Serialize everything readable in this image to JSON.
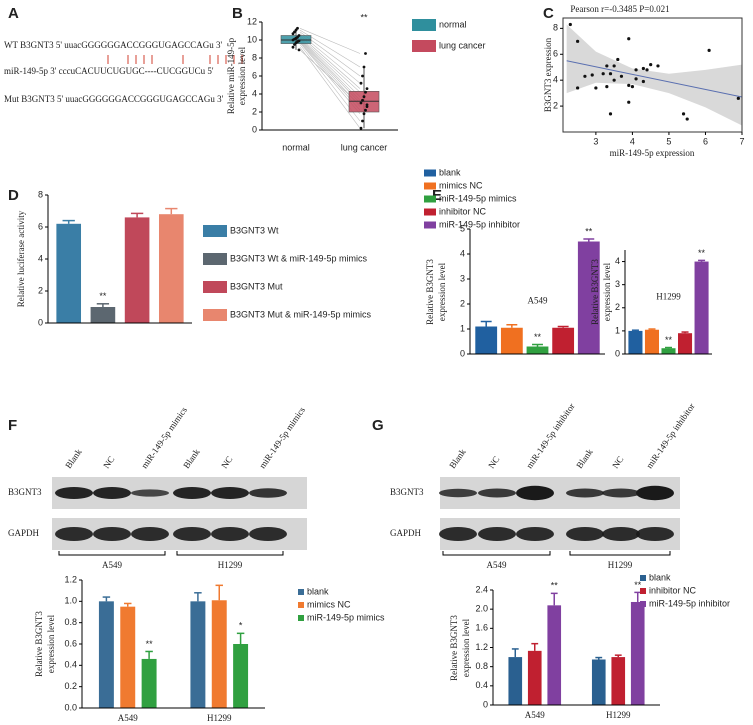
{
  "panel_labels": [
    "A",
    "B",
    "C",
    "D",
    "E",
    "F",
    "G"
  ],
  "sequences": [
    "WT B3GNT3 5' uuacGGGGGGACCGGGUGAGCCAGu 3'",
    "miR-149-5p 3' cccuCACUUCUGUGC----CUCGGUCu 5'",
    "Mut B3GNT3 5' uuacGGGGGGACCGGGUGAGCCAGu 3'"
  ],
  "blots": [
    {
      "lanes": [
        "Blank",
        "NC",
        "miR-149-5p mimics",
        "Blank",
        "NC",
        "miR-149-5p mimics"
      ],
      "rows": [
        "B3GNT3",
        "GAPDH"
      ],
      "groups": [
        "A549",
        "H1299"
      ]
    },
    {
      "lanes": [
        "Blank",
        "NC",
        "miR-149-5p inhibitor",
        "Blank",
        "NC",
        "miR-149-5p inhibitor"
      ],
      "rows": [
        "B3GNT3",
        "GAPDH"
      ],
      "groups": [
        "A549",
        "H1299"
      ]
    }
  ],
  "chart_data": [
    {
      "type": "box",
      "ylabel": [
        "Relative miR-149-5p",
        "expression level"
      ],
      "annotation": "**",
      "categories": [
        "normal",
        "lung cancer"
      ],
      "ylim": [
        0,
        12
      ],
      "yticks": [
        0,
        2,
        4,
        6,
        8,
        10,
        12
      ],
      "series": [
        {
          "name": "normal",
          "color": "#2f8f9d",
          "box": {
            "min": 8.9,
            "q1": 9.6,
            "median": 10.0,
            "q3": 10.5,
            "max": 11.3
          },
          "values": [
            9.2,
            9.5,
            9.7,
            9.8,
            9.9,
            10.0,
            10.1,
            10.2,
            10.3,
            10.5,
            10.7,
            10.9,
            11.1,
            11.3,
            8.9
          ]
        },
        {
          "name": "lung cancer",
          "color": "#c44a5e",
          "box": {
            "min": 0.2,
            "q1": 2.0,
            "median": 3.2,
            "q3": 4.3,
            "max": 7.0
          },
          "values": [
            0.2,
            1.0,
            1.8,
            2.2,
            2.6,
            3.0,
            3.3,
            3.7,
            4.2,
            4.6,
            5.2,
            6.0,
            7.0,
            8.5,
            2.8
          ]
        }
      ]
    },
    {
      "type": "scatter",
      "title": "Pearson r=-0.3485 P=0.021",
      "xlabel": "miR-149-5p expression",
      "ylabel": "B3GNT3 expression",
      "xlim": [
        2.1,
        7.0
      ],
      "ylim": [
        0,
        8.8
      ],
      "xticks": [
        3,
        4,
        5,
        6,
        7
      ],
      "yticks": [
        2,
        4,
        6,
        8
      ],
      "x": [
        2.3,
        2.5,
        2.5,
        2.7,
        2.9,
        3.2,
        3.0,
        3.3,
        3.4,
        3.3,
        3.5,
        3.6,
        3.4,
        3.5,
        3.7,
        3.9,
        3.9,
        3.9,
        4.1,
        4.3,
        4.4,
        4.5,
        4.3,
        4.0,
        4.1,
        4.7,
        5.4,
        5.5,
        6.1,
        6.9
      ],
      "y": [
        8.3,
        7.0,
        3.4,
        4.3,
        4.4,
        4.5,
        3.4,
        3.5,
        4.5,
        5.1,
        5.1,
        5.6,
        1.4,
        4.0,
        4.3,
        3.6,
        7.2,
        2.3,
        4.8,
        4.9,
        4.8,
        5.2,
        3.9,
        3.5,
        4.1,
        5.1,
        1.4,
        1.0,
        6.3,
        2.6
      ],
      "color": "#111111",
      "fit": {
        "x": [
          2.2,
          7.0
        ],
        "y": [
          5.5,
          2.7
        ],
        "color": "#5a6fb0"
      },
      "ci": {
        "x": [
          2.2,
          3.0,
          4.0,
          5.0,
          6.0,
          7.0
        ],
        "upper": [
          8.3,
          6.2,
          4.9,
          4.5,
          4.8,
          5.2
        ],
        "lower": [
          3.0,
          3.8,
          3.7,
          3.0,
          1.9,
          0.5
        ],
        "color": "#d9d9d9"
      }
    },
    {
      "type": "bar",
      "ylabel": "Relative luciferase activity",
      "categories": [
        null
      ],
      "ylim": [
        0,
        8
      ],
      "yticks": [
        0,
        2,
        4,
        6,
        8
      ],
      "series": [
        {
          "name": "B3GNT3 Wt",
          "color": "#3a7ea6",
          "values": [
            6.2
          ],
          "errors": [
            0.2
          ]
        },
        {
          "name": "B3GNT3 Wt & miR-149-5p mimics",
          "color": "#5c6770",
          "values": [
            1.0
          ],
          "errors": [
            0.2
          ],
          "significance": [
            "**"
          ]
        },
        {
          "name": "B3GNT3 Mut",
          "color": "#c0485a",
          "values": [
            6.6
          ],
          "errors": [
            0.25
          ]
        },
        {
          "name": "B3GNT3 Mut & miR-149-5p mimics",
          "color": "#e8866e",
          "values": [
            6.8
          ],
          "errors": [
            0.35
          ]
        }
      ]
    },
    {
      "type": "bar",
      "ylabel": [
        "Relative B3GNT3",
        "expression level"
      ],
      "categories": [
        "A549",
        "H1299"
      ],
      "subplots": [
        {
          "ylim": [
            0,
            5
          ],
          "yticks": [
            0,
            1,
            2,
            3,
            4,
            5
          ]
        },
        {
          "ylim": [
            0,
            4.5
          ],
          "yticks": [
            0,
            1,
            2,
            3,
            4
          ]
        }
      ],
      "series": [
        {
          "name": "blank",
          "color": "#2060a0",
          "values": [
            1.1,
            1.0
          ],
          "errors": [
            0.2,
            0.03
          ]
        },
        {
          "name": "mimics NC",
          "color": "#f07020",
          "values": [
            1.05,
            1.05
          ],
          "errors": [
            0.12,
            0.03
          ]
        },
        {
          "name": "miR-149-5p mimics",
          "color": "#30a040",
          "values": [
            0.3,
            0.25
          ],
          "errors": [
            0.08,
            0.03
          ],
          "significance": [
            "**",
            "**"
          ]
        },
        {
          "name": "inhibitor NC",
          "color": "#c02030",
          "values": [
            1.05,
            0.9
          ],
          "errors": [
            0.05,
            0.05
          ]
        },
        {
          "name": "miR-149-5p inhibitor",
          "color": "#8040a0",
          "values": [
            4.5,
            4.0
          ],
          "errors": [
            0.1,
            0.05
          ],
          "significance": [
            "**",
            "**"
          ]
        }
      ]
    },
    {
      "type": "bar",
      "ylabel": [
        "Relative B3GNT3",
        "expression level"
      ],
      "categories": [
        "A549",
        "H1299"
      ],
      "ylim": [
        0,
        1.2
      ],
      "yticks": [
        {
          "value": 0,
          "label": "0.0"
        },
        0.2,
        0.4,
        0.6,
        0.8,
        {
          "value": 1,
          "label": "1.0"
        },
        1.2
      ],
      "series": [
        {
          "name": "blank",
          "color": "#3a6d96",
          "values": [
            1.0,
            1.0
          ],
          "errors": [
            0.04,
            0.08
          ]
        },
        {
          "name": "mimics NC",
          "color": "#f07a30",
          "values": [
            0.95,
            1.01
          ],
          "errors": [
            0.03,
            0.14
          ]
        },
        {
          "name": "miR-149-5p mimics",
          "color": "#30a040",
          "values": [
            0.46,
            0.6
          ],
          "errors": [
            0.07,
            0.1
          ],
          "significance": [
            "**",
            "*"
          ]
        }
      ]
    },
    {
      "type": "bar",
      "ylabel": [
        "Relative B3GNT3",
        "expression level"
      ],
      "categories": [
        "A549",
        "H1299"
      ],
      "ylim": [
        0,
        2.4
      ],
      "yticks": [
        0,
        0.4,
        0.8,
        1.2,
        1.6,
        {
          "value": 2,
          "label": "2.0"
        },
        2.4
      ],
      "series": [
        {
          "name": "blank",
          "color": "#2a6090",
          "values": [
            1.0,
            0.95
          ],
          "errors": [
            0.17,
            0.04
          ]
        },
        {
          "name": "inhibitor NC",
          "color": "#c02030",
          "values": [
            1.13,
            1.0
          ],
          "errors": [
            0.15,
            0.04
          ]
        },
        {
          "name": "miR-149-5p inhibitor",
          "color": "#8040a0",
          "values": [
            2.08,
            2.15
          ],
          "errors": [
            0.25,
            0.2
          ],
          "significance": [
            "**",
            "**"
          ]
        }
      ]
    }
  ]
}
